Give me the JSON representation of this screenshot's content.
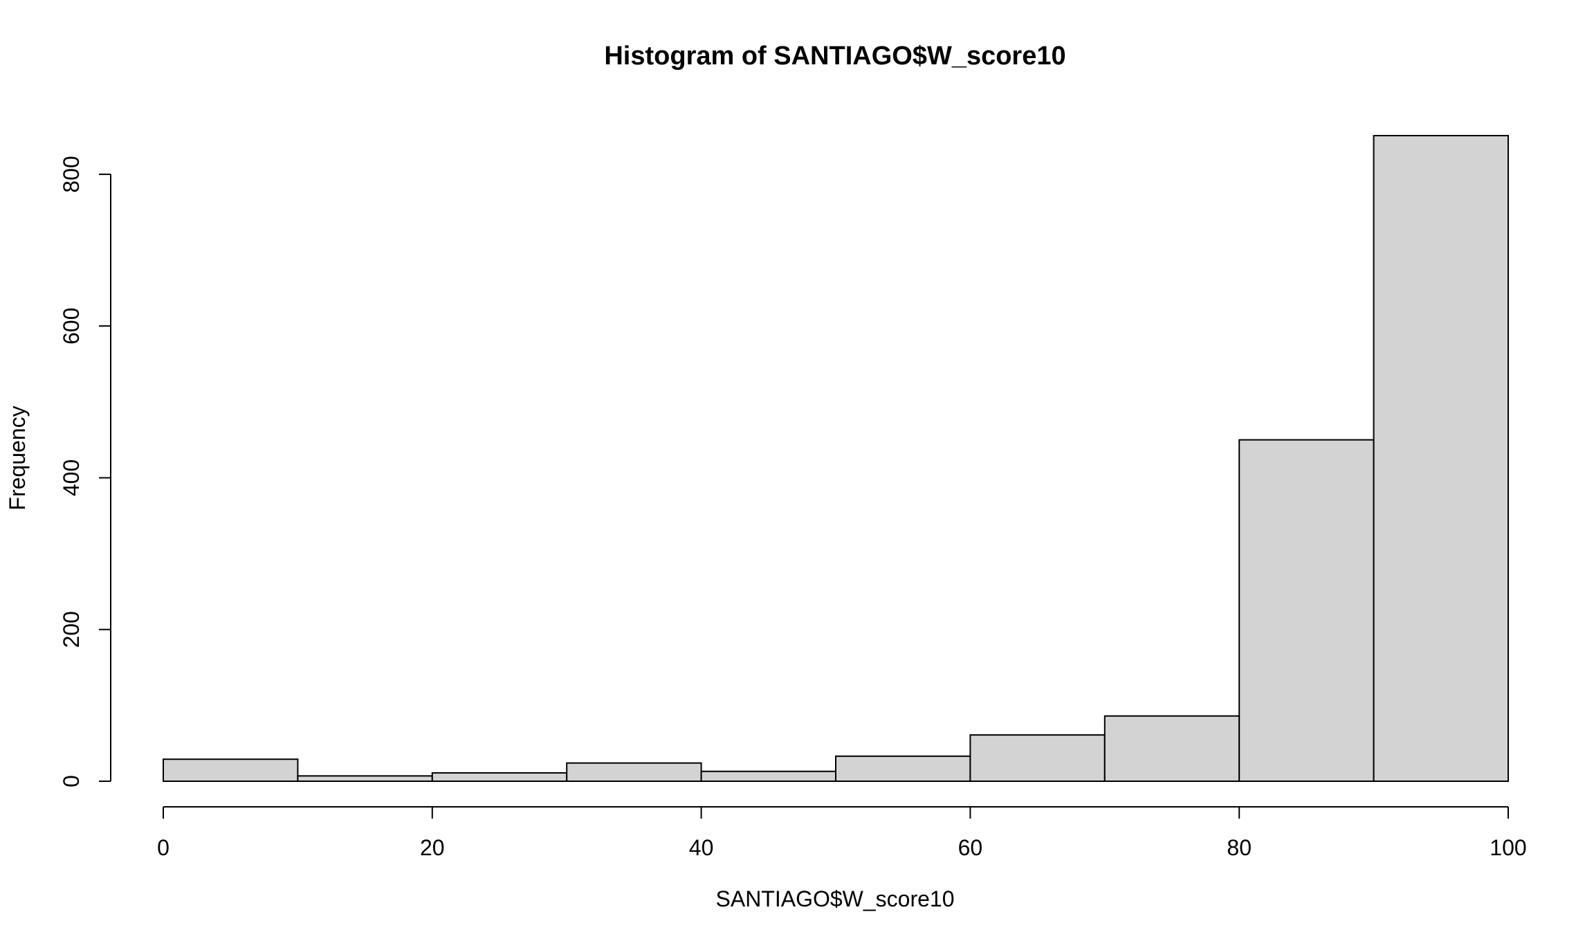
{
  "chart_data": {
    "type": "bar",
    "subtype": "histogram",
    "title": "Histogram of SANTIAGO$W_score10",
    "xlabel": "SANTIAGO$W_score10",
    "ylabel": "Frequency",
    "bins": [
      {
        "from": 0,
        "to": 10,
        "count": 29
      },
      {
        "from": 10,
        "to": 20,
        "count": 7
      },
      {
        "from": 20,
        "to": 30,
        "count": 11
      },
      {
        "from": 30,
        "to": 40,
        "count": 24
      },
      {
        "from": 40,
        "to": 50,
        "count": 13
      },
      {
        "from": 50,
        "to": 60,
        "count": 33
      },
      {
        "from": 60,
        "to": 70,
        "count": 61
      },
      {
        "from": 70,
        "to": 80,
        "count": 86
      },
      {
        "from": 80,
        "to": 90,
        "count": 450
      },
      {
        "from": 90,
        "to": 100,
        "count": 851
      }
    ],
    "xlim": [
      0,
      100
    ],
    "ylim": [
      0,
      851
    ],
    "x_ticks": [
      "0",
      "20",
      "40",
      "60",
      "80",
      "100"
    ],
    "y_ticks": [
      "0",
      "200",
      "400",
      "600",
      "800"
    ],
    "grid": false,
    "bar_color": "#d3d3d3",
    "edge_color": "#000000"
  }
}
